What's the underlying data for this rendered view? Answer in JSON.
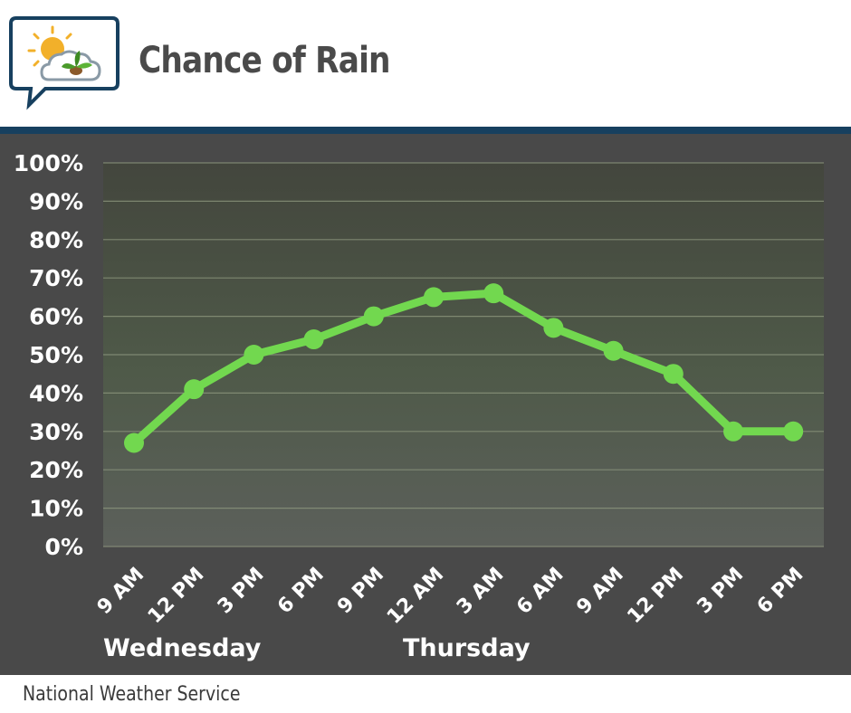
{
  "header": {
    "title": "Chance of Rain",
    "logo_name": "weather-bubble-logo"
  },
  "footer": {
    "source": "National Weather Service"
  },
  "colors": {
    "line": "#72d84f",
    "rule": "#17405f",
    "panel": "#494949",
    "grid": "#8f9980"
  },
  "chart_data": {
    "type": "line",
    "title": "Chance of Rain",
    "xlabel": "",
    "ylabel": "",
    "ylim": [
      0,
      100
    ],
    "yticks": [
      0,
      10,
      20,
      30,
      40,
      50,
      60,
      70,
      80,
      90,
      100
    ],
    "ytick_labels": [
      "0%",
      "10%",
      "20%",
      "30%",
      "40%",
      "50%",
      "60%",
      "70%",
      "80%",
      "90%",
      "100%"
    ],
    "categories": [
      "9 AM",
      "12 PM",
      "3 PM",
      "6 PM",
      "9 PM",
      "12 AM",
      "3 AM",
      "6 AM",
      "9 AM",
      "12 PM",
      "3 PM",
      "6 PM"
    ],
    "series": [
      {
        "name": "Chance of Rain",
        "values": [
          27,
          41,
          50,
          54,
          60,
          65,
          66,
          57,
          51,
          45,
          30,
          30
        ]
      }
    ],
    "day_labels": [
      {
        "text": "Wednesday",
        "start_index": 0
      },
      {
        "text": "Thursday",
        "start_index": 5
      }
    ],
    "grid": true,
    "legend": "none"
  }
}
